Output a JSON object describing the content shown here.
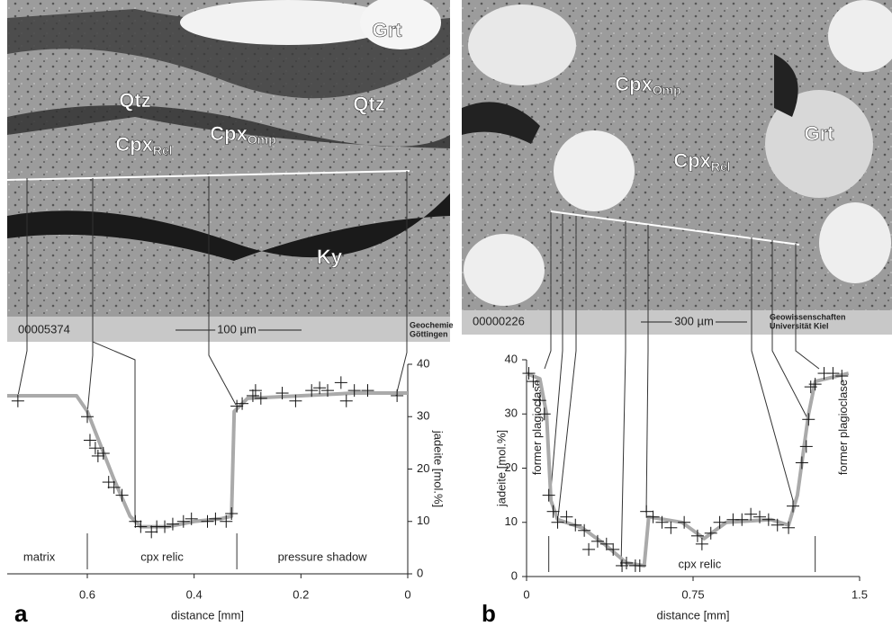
{
  "chart_data": [
    {
      "type": "scatter",
      "panel": "a",
      "x_label": "distance [mm]",
      "y_label": "jadeite [mol.%]",
      "xlim": [
        0.75,
        0
      ],
      "ylim": [
        0,
        40
      ],
      "xticks": [
        0.6,
        0.4,
        0.2,
        0
      ],
      "yticks": [
        0,
        10,
        20,
        30,
        40
      ],
      "x": [
        0.73,
        0.6,
        0.595,
        0.585,
        0.58,
        0.57,
        0.56,
        0.55,
        0.535,
        0.51,
        0.5,
        0.48,
        0.47,
        0.455,
        0.44,
        0.42,
        0.405,
        0.375,
        0.36,
        0.34,
        0.33,
        0.32,
        0.31,
        0.29,
        0.285,
        0.275,
        0.235,
        0.21,
        0.18,
        0.165,
        0.15,
        0.125,
        0.115,
        0.1,
        0.075,
        0.02
      ],
      "values": [
        33,
        30,
        25.5,
        24,
        22.5,
        23,
        17.5,
        16.5,
        15,
        10,
        9,
        8,
        9,
        9,
        9.5,
        10,
        10.5,
        10,
        10.5,
        10,
        11.5,
        32,
        32.5,
        34,
        35,
        33.5,
        34.5,
        33,
        35,
        35.5,
        35,
        36.5,
        33,
        35,
        35,
        34
      ],
      "fit": {
        "x": [
          0.75,
          0.62,
          0.6,
          0.55,
          0.52,
          0.5,
          0.45,
          0.4,
          0.35,
          0.33,
          0.325,
          0.3,
          0.2,
          0.1,
          0
        ],
        "values": [
          34,
          34,
          31,
          18,
          11,
          9,
          9,
          10,
          10.5,
          11,
          31,
          33.5,
          34,
          34.5,
          34.5
        ]
      },
      "dividers": [
        0.6,
        0.32
      ],
      "regions": [
        {
          "text": "matrix",
          "x": 0.69
        },
        {
          "text": "cpx relic",
          "x": 0.46
        },
        {
          "text": "pressure shadow",
          "x": 0.16
        }
      ],
      "image": {
        "id": "00005374",
        "scale": "100 µm",
        "institute": [
          "Geochemie",
          "Göttingen"
        ],
        "labels": [
          {
            "text": "Grt"
          },
          {
            "text": "Qtz"
          },
          {
            "text": "Qtz"
          },
          {
            "text": "Cpx",
            "sub": "Rel"
          },
          {
            "text": "Cpx",
            "sub": "Omp"
          },
          {
            "text": "Ky"
          }
        ]
      }
    },
    {
      "type": "scatter",
      "panel": "b",
      "x_label": "distance [mm]",
      "y_label": "jadeite [mol.%]",
      "xlim": [
        0,
        1.5
      ],
      "ylim": [
        0,
        40
      ],
      "xticks": [
        0,
        0.75,
        1.5
      ],
      "yticks": [
        0,
        10,
        20,
        30,
        40
      ],
      "x": [
        0.01,
        0.03,
        0.06,
        0.08,
        0.1,
        0.12,
        0.14,
        0.18,
        0.22,
        0.26,
        0.28,
        0.32,
        0.36,
        0.39,
        0.43,
        0.45,
        0.49,
        0.51,
        0.54,
        0.57,
        0.61,
        0.65,
        0.71,
        0.77,
        0.79,
        0.83,
        0.87,
        0.93,
        0.97,
        1.01,
        1.05,
        1.09,
        1.13,
        1.18,
        1.2,
        1.24,
        1.26,
        1.27,
        1.28,
        1.3,
        1.34,
        1.38,
        1.42
      ],
      "values": [
        37.5,
        36,
        32.5,
        30,
        15,
        12,
        10,
        11,
        9.5,
        8.5,
        5,
        6.5,
        6,
        5,
        2,
        2.5,
        2,
        2,
        12,
        11,
        10,
        9,
        10,
        7.5,
        6,
        8,
        10,
        10.5,
        10.5,
        11.5,
        11,
        10.5,
        9.5,
        9,
        13,
        21,
        24,
        29,
        35,
        35.5,
        37.5,
        37.5,
        37
      ],
      "fit": {
        "x": [
          0,
          0.06,
          0.09,
          0.11,
          0.14,
          0.25,
          0.35,
          0.45,
          0.53,
          0.55,
          0.7,
          0.8,
          0.9,
          1.1,
          1.18,
          1.22,
          1.27,
          1.3,
          1.45
        ],
        "values": [
          37.5,
          36.5,
          30,
          14,
          10.5,
          9,
          6,
          2.5,
          2,
          11,
          10,
          7,
          10,
          10.5,
          9.5,
          15,
          30,
          36,
          37.5
        ]
      },
      "dividers": [
        0.1,
        1.3
      ],
      "regions": [
        {
          "text": "former plagioclase",
          "x": 0.05,
          "vertical": true
        },
        {
          "text": "cpx relic",
          "x": 0.78
        },
        {
          "text": "former plagioclase",
          "x": 1.43,
          "vertical": true
        }
      ],
      "image": {
        "id": "00000226",
        "scale": "300 µm",
        "institute": [
          "Geowissenschaften",
          "Universität Kiel"
        ],
        "labels": [
          {
            "text": "Cpx",
            "sub": "Omp"
          },
          {
            "text": "Grt"
          },
          {
            "text": "Cpx",
            "sub": "Rel"
          }
        ]
      }
    }
  ]
}
